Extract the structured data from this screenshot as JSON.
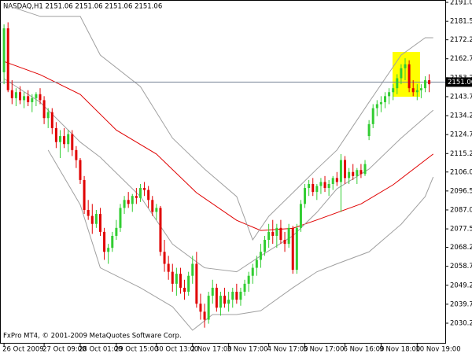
{
  "chart_data": {
    "type": "candlestick",
    "title": "NASDAQ,H1  2151.06 2151.06 2151.06 2151.06",
    "footer": "FxPro MT4, © 2001-2009 MetaQuotes Software Corp.",
    "last_price": 2151.06,
    "up_color": "#32cd32",
    "down_color": "#e00000",
    "ylim": [
      2020,
      2192.2
    ],
    "yticks": [
      {
        "value": 2191,
        "label": "2191.00"
      },
      {
        "value": 2181.5,
        "label": "2181.50"
      },
      {
        "value": 2172.25,
        "label": "2172.25"
      },
      {
        "value": 2162.75,
        "label": "2162.75"
      },
      {
        "value": 2153.25,
        "label": "2153.25"
      },
      {
        "value": 2143.75,
        "label": "2143.75"
      },
      {
        "value": 2134.25,
        "label": "2134.25"
      },
      {
        "value": 2124.75,
        "label": "2124.75"
      },
      {
        "value": 2115.25,
        "label": "2115.25"
      },
      {
        "value": 2106,
        "label": "2106.00"
      },
      {
        "value": 2096.5,
        "label": "2096.50"
      },
      {
        "value": 2087,
        "label": "2087.00"
      },
      {
        "value": 2077.5,
        "label": "2077.50"
      },
      {
        "value": 2068.25,
        "label": "2068.25"
      },
      {
        "value": 2058.75,
        "label": "2058.75"
      },
      {
        "value": 2049.25,
        "label": "2049.25"
      },
      {
        "value": 2039.75,
        "label": "2039.75"
      },
      {
        "value": 2030.25,
        "label": "2030.25"
      }
    ],
    "xlim": [
      -1,
      110
    ],
    "xticks": [
      {
        "value": 0,
        "label": "26 Oct 2009"
      },
      {
        "value": 10,
        "label": "27 Oct 09:00"
      },
      {
        "value": 19,
        "label": "28 Oct 01:00"
      },
      {
        "value": 28,
        "label": "29 Oct 15:00"
      },
      {
        "value": 38,
        "label": "30 Oct 13:00"
      },
      {
        "value": 47,
        "label": "2 Nov 17:00"
      },
      {
        "value": 56,
        "label": "3 Nov 17:00"
      },
      {
        "value": 66,
        "label": "4 Nov 17:00"
      },
      {
        "value": 75,
        "label": "5 Nov 17:00"
      },
      {
        "value": 85,
        "label": "6 Nov 16:00"
      },
      {
        "value": 94,
        "label": "9 Nov 18:00"
      },
      {
        "value": 103,
        "label": "10 Nov 19:00"
      }
    ],
    "candles": [
      [
        2156,
        2180,
        2150,
        2178
      ],
      [
        2178,
        2181,
        2146,
        2147
      ],
      [
        2147,
        2152,
        2140,
        2143
      ],
      [
        2143,
        2148,
        2139,
        2146
      ],
      [
        2146,
        2149,
        2140,
        2142
      ],
      [
        2142,
        2146,
        2138,
        2144
      ],
      [
        2144,
        2147,
        2139,
        2141
      ],
      [
        2141,
        2145,
        2136,
        2143
      ],
      [
        2143,
        2146,
        2139,
        2145
      ],
      [
        2145,
        2148,
        2140,
        2142
      ],
      [
        2142,
        2144,
        2130,
        2133
      ],
      [
        2133,
        2138,
        2128,
        2136
      ],
      [
        2136,
        2138,
        2125,
        2128
      ],
      [
        2128,
        2131,
        2118,
        2121
      ],
      [
        2121,
        2127,
        2113,
        2124
      ],
      [
        2124,
        2128,
        2118,
        2120
      ],
      [
        2120,
        2127,
        2116,
        2125
      ],
      [
        2125,
        2127,
        2114,
        2117
      ],
      [
        2117,
        2119,
        2108,
        2112
      ],
      [
        2112,
        2113,
        2100,
        2102
      ],
      [
        2102,
        2104,
        2085,
        2087
      ],
      [
        2087,
        2092,
        2082,
        2084
      ],
      [
        2084,
        2090,
        2075,
        2080
      ],
      [
        2080,
        2087,
        2078,
        2085
      ],
      [
        2085,
        2088,
        2074,
        2076
      ],
      [
        2076,
        2078,
        2062,
        2066
      ],
      [
        2066,
        2070,
        2060,
        2068
      ],
      [
        2068,
        2076,
        2066,
        2074
      ],
      [
        2074,
        2082,
        2072,
        2078
      ],
      [
        2078,
        2090,
        2076,
        2088
      ],
      [
        2088,
        2094,
        2085,
        2092
      ],
      [
        2092,
        2096,
        2088,
        2090
      ],
      [
        2090,
        2095,
        2086,
        2094
      ],
      [
        2094,
        2098,
        2090,
        2093
      ],
      [
        2093,
        2100,
        2091,
        2098
      ],
      [
        2098,
        2101,
        2094,
        2097
      ],
      [
        2097,
        2099,
        2088,
        2092
      ],
      [
        2092,
        2094,
        2084,
        2086
      ],
      [
        2086,
        2090,
        2082,
        2088
      ],
      [
        2088,
        2089,
        2064,
        2066
      ],
      [
        2066,
        2072,
        2056,
        2060
      ],
      [
        2060,
        2064,
        2052,
        2056
      ],
      [
        2056,
        2060,
        2046,
        2050
      ],
      [
        2050,
        2058,
        2044,
        2055
      ],
      [
        2055,
        2058,
        2045,
        2048
      ],
      [
        2048,
        2052,
        2042,
        2046
      ],
      [
        2046,
        2056,
        2044,
        2054
      ],
      [
        2054,
        2064,
        2050,
        2060
      ],
      [
        2060,
        2066,
        2038,
        2040
      ],
      [
        2040,
        2045,
        2032,
        2036
      ],
      [
        2036,
        2040,
        2028,
        2032
      ],
      [
        2032,
        2046,
        2030,
        2044
      ],
      [
        2044,
        2052,
        2040,
        2048
      ],
      [
        2048,
        2050,
        2036,
        2038
      ],
      [
        2038,
        2046,
        2034,
        2044
      ],
      [
        2044,
        2048,
        2038,
        2040
      ],
      [
        2040,
        2046,
        2036,
        2042
      ],
      [
        2042,
        2048,
        2038,
        2046
      ],
      [
        2046,
        2050,
        2040,
        2042
      ],
      [
        2042,
        2048,
        2039,
        2046
      ],
      [
        2046,
        2052,
        2044,
        2050
      ],
      [
        2050,
        2056,
        2046,
        2054
      ],
      [
        2054,
        2060,
        2050,
        2058
      ],
      [
        2058,
        2064,
        2054,
        2062
      ],
      [
        2062,
        2070,
        2058,
        2066
      ],
      [
        2066,
        2074,
        2064,
        2072
      ],
      [
        2072,
        2080,
        2068,
        2076
      ],
      [
        2076,
        2082,
        2070,
        2074
      ],
      [
        2074,
        2080,
        2068,
        2078
      ],
      [
        2078,
        2082,
        2070,
        2072
      ],
      [
        2072,
        2076,
        2066,
        2070
      ],
      [
        2070,
        2080,
        2068,
        2078
      ],
      [
        2078,
        2079,
        2055,
        2057
      ],
      [
        2057,
        2080,
        2055,
        2078
      ],
      [
        2078,
        2092,
        2076,
        2090
      ],
      [
        2090,
        2100,
        2088,
        2098
      ],
      [
        2098,
        2102,
        2094,
        2100
      ],
      [
        2100,
        2103,
        2094,
        2096
      ],
      [
        2096,
        2100,
        2092,
        2099
      ],
      [
        2099,
        2103,
        2095,
        2101
      ],
      [
        2101,
        2104,
        2096,
        2098
      ],
      [
        2098,
        2102,
        2094,
        2100
      ],
      [
        2100,
        2104,
        2097,
        2103
      ],
      [
        2103,
        2106,
        2099,
        2101
      ],
      [
        2101,
        2115,
        2086,
        2112
      ],
      [
        2112,
        2114,
        2100,
        2103
      ],
      [
        2103,
        2108,
        2100,
        2106
      ],
      [
        2106,
        2110,
        2102,
        2104
      ],
      [
        2104,
        2108,
        2100,
        2107
      ],
      [
        2107,
        2110,
        2103,
        2105
      ],
      [
        2105,
        2112,
        2104,
        2110
      ],
      [
        2124,
        2132,
        2122,
        2130
      ],
      [
        2130,
        2140,
        2128,
        2138
      ],
      [
        2138,
        2142,
        2134,
        2140
      ],
      [
        2140,
        2144,
        2136,
        2141
      ],
      [
        2141,
        2146,
        2138,
        2144
      ],
      [
        2144,
        2148,
        2140,
        2146
      ],
      [
        2146,
        2150,
        2142,
        2148
      ],
      [
        2148,
        2155,
        2145,
        2153
      ],
      [
        2153,
        2160,
        2150,
        2158
      ],
      [
        2158,
        2163,
        2152,
        2160
      ],
      [
        2160,
        2162,
        2146,
        2148
      ],
      [
        2148,
        2152,
        2144,
        2146
      ],
      [
        2146,
        2150,
        2142,
        2147
      ],
      [
        2147,
        2150,
        2143,
        2148
      ],
      [
        2148,
        2154,
        2146,
        2152
      ],
      [
        2152,
        2155,
        2146,
        2150
      ]
    ],
    "lines": [
      {
        "color": "#e00000",
        "x": [
          0,
          9,
          19,
          28,
          38,
          48,
          58,
          64,
          72,
          78,
          89,
          97,
          107
        ],
        "values": [
          2161.4,
          2154.8,
          2144.9,
          2127,
          2115,
          2095.6,
          2081.8,
          2076.7,
          2077.8,
          2082,
          2090,
          2099.6,
          2115
        ]
      },
      {
        "color": "#a0a0a0",
        "x": [
          0,
          9,
          19,
          24,
          34,
          42,
          50,
          58,
          62,
          66,
          72,
          78,
          83,
          91,
          99,
          105,
          107
        ],
        "values": [
          2190,
          2184,
          2184,
          2164.6,
          2148.8,
          2123,
          2107.5,
          2093.7,
          2072,
          2083.8,
          2095.6,
          2107.5,
          2117,
          2141,
          2164.6,
          2173.3,
          2173.3
        ]
      },
      {
        "color": "#a0a0a0",
        "x": [
          0,
          9,
          19,
          24,
          34,
          42,
          50,
          58,
          64,
          72,
          78,
          83,
          91,
          99,
          107
        ],
        "values": [
          2152.8,
          2141,
          2121,
          2113.4,
          2093.7,
          2069.9,
          2058,
          2056,
          2064,
          2074,
          2085.8,
          2097.6,
          2107.5,
          2123,
          2137
        ]
      },
      {
        "color": "#a0a0a0",
        "x": [
          11,
          19,
          24,
          34,
          42,
          47,
          52,
          58,
          64,
          72,
          78,
          83,
          91,
          99,
          105,
          107
        ],
        "values": [
          2117,
          2089.6,
          2058,
          2048,
          2038.5,
          2026.7,
          2034.6,
          2034.6,
          2036.5,
          2048,
          2056,
          2060,
          2066,
          2079.8,
          2093.7,
          2103.5
        ]
      }
    ]
  }
}
